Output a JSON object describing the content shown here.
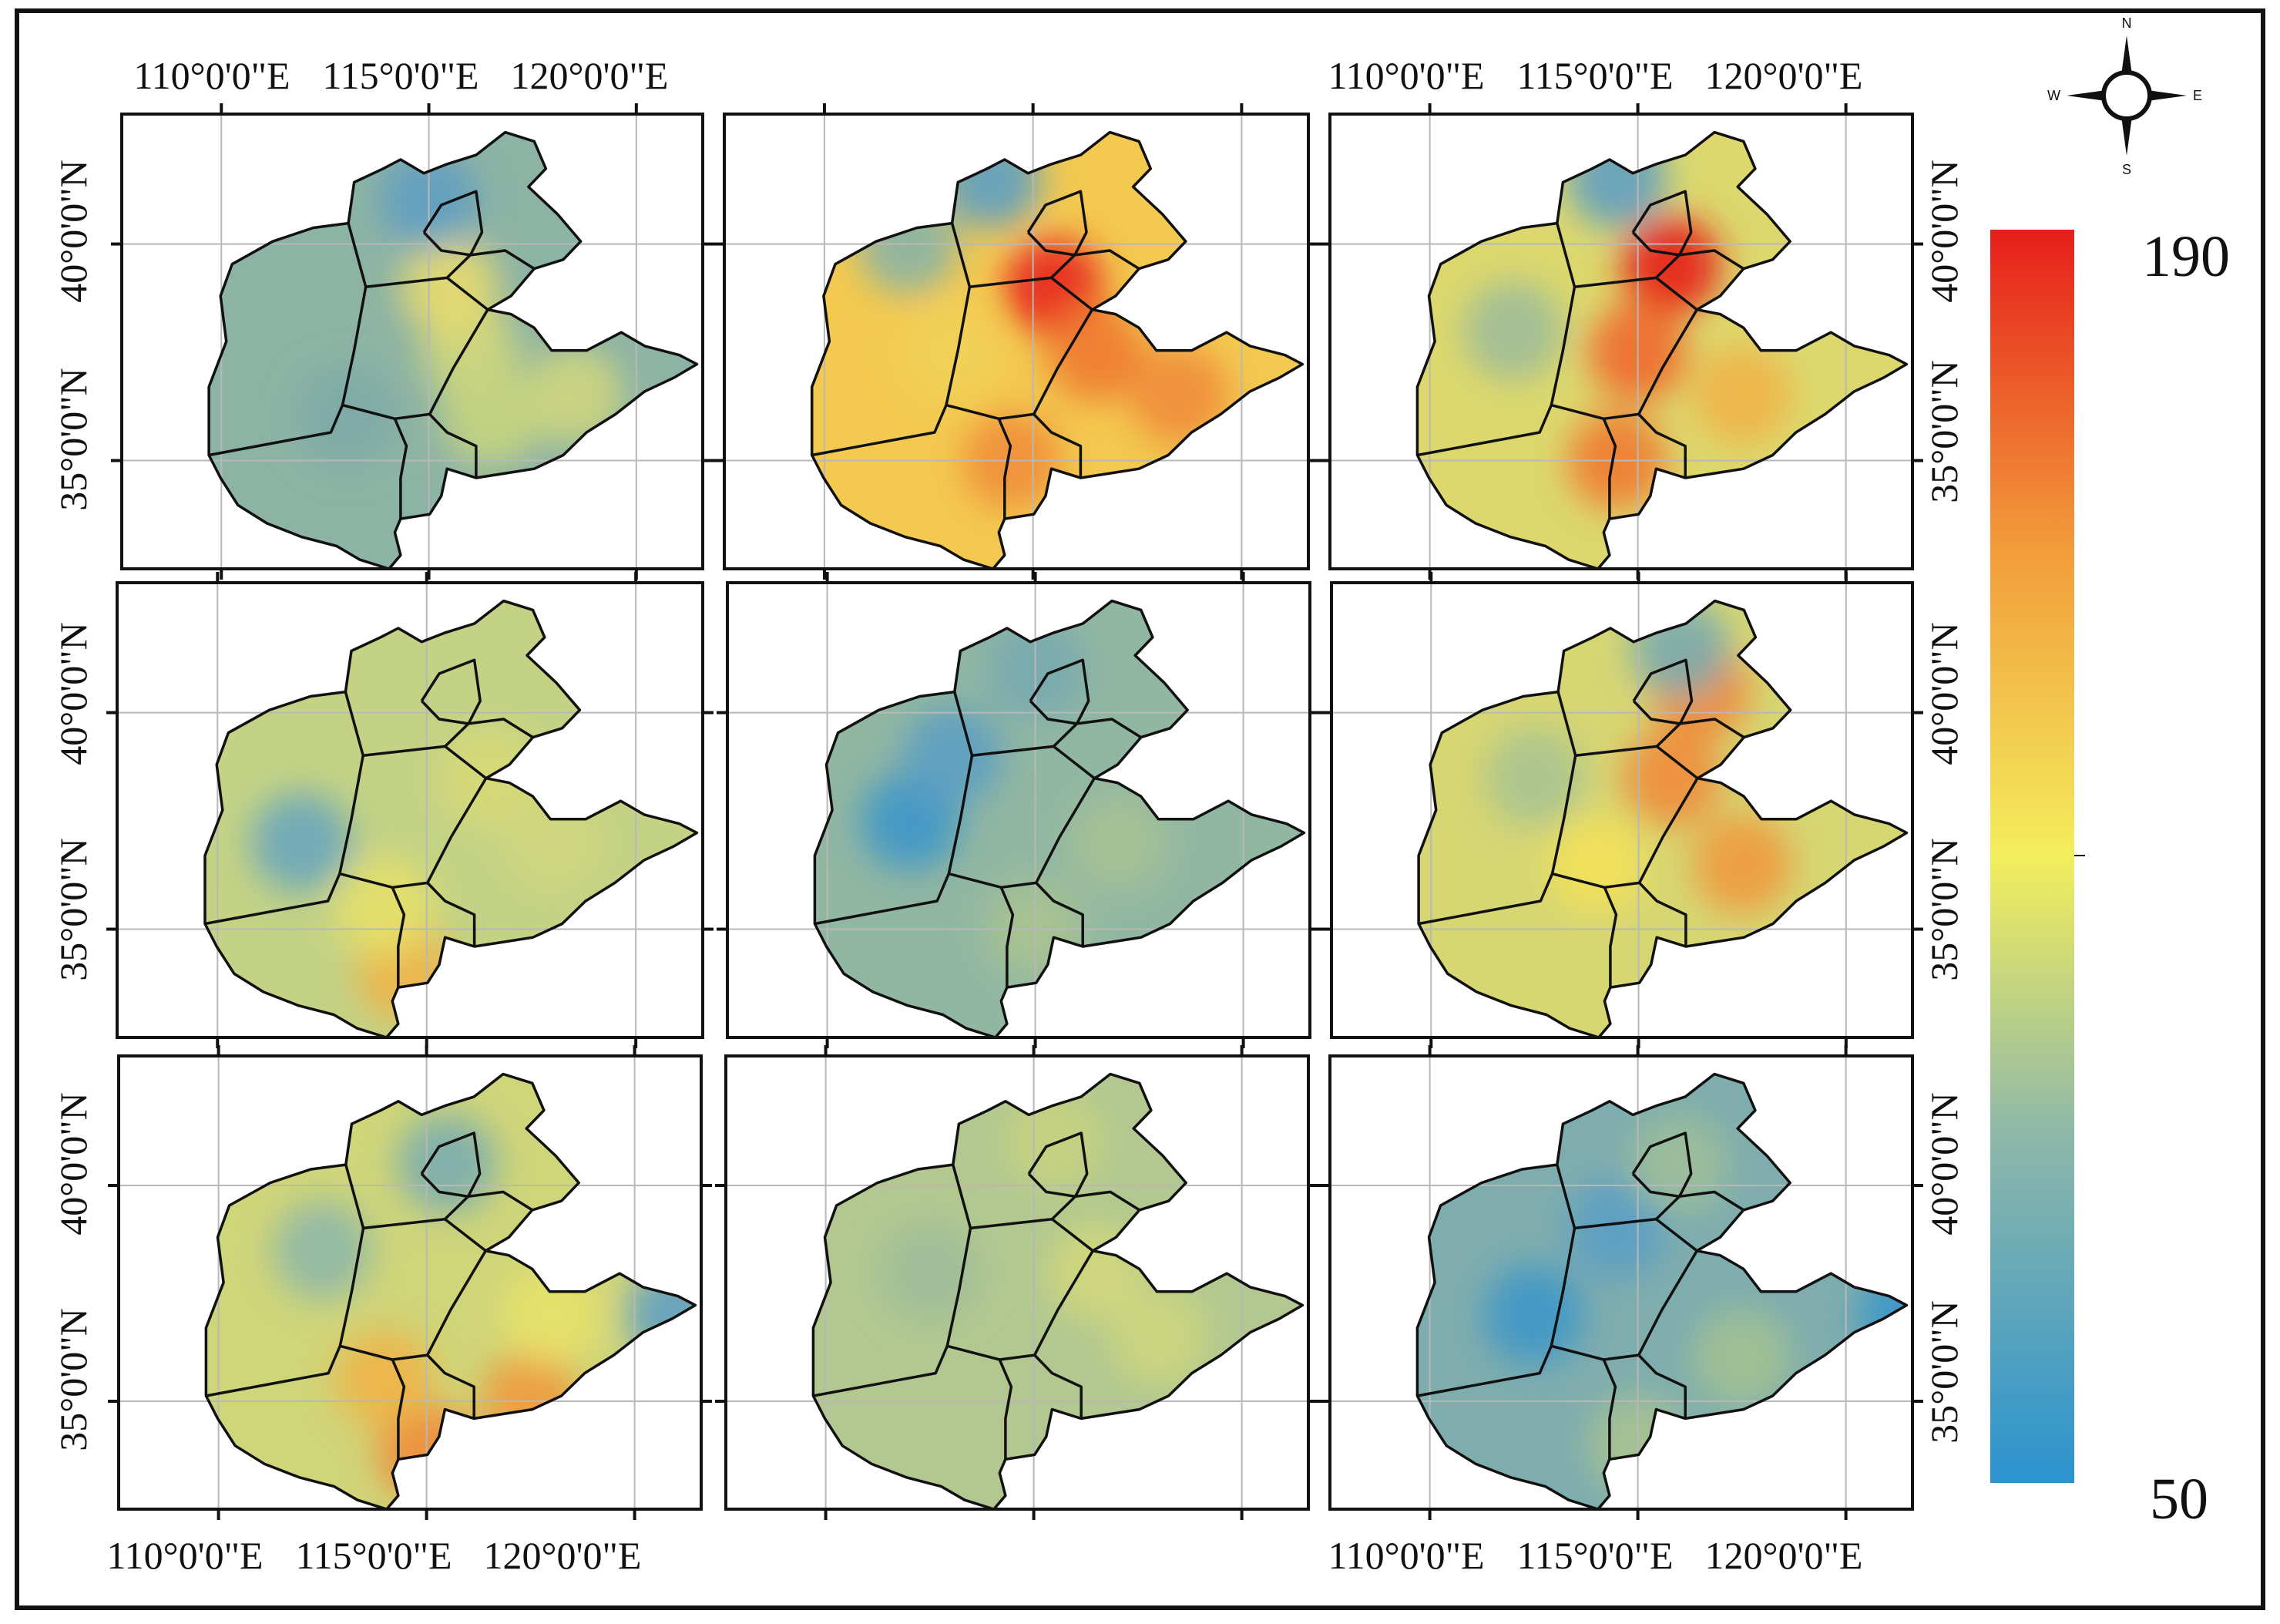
{
  "figure": {
    "panel_count": 9,
    "grid_columns": 3,
    "grid_rows": 3
  },
  "axes": {
    "lon_top_left": [
      "110°0'0\"E",
      "115°0'0\"E",
      "120°0'0\"E"
    ],
    "lon_top_right": [
      "110°0'0\"E",
      "115°0'0\"E",
      "120°0'0\"E"
    ],
    "lon_bottom_left": [
      "110°0'0\"E",
      "115°0'0\"E",
      "120°0'0\"E"
    ],
    "lon_bottom_right": [
      "110°0'0\"E",
      "115°0'0\"E",
      "120°0'0\"E"
    ],
    "lat_left": [
      "40°0'0\"N",
      "35°0'0\"N"
    ],
    "lat_right": [
      "40°0'0\"N",
      "35°0'0\"N"
    ]
  },
  "legend": {
    "max_label": "190",
    "min_label": "50",
    "max_value": 190,
    "min_value": 50,
    "colors": [
      "#2b93cf",
      "#8fb8a8",
      "#f3ee5c",
      "#f29a3a",
      "#e61f1a"
    ]
  },
  "compass": {
    "n": "N",
    "s": "S",
    "e": "E",
    "w": "W"
  },
  "panels": [
    {
      "id": "a",
      "base_color": "#8db3a4",
      "hotspots": [
        {
          "lon": 113.0,
          "lat": 36.0,
          "level": "#7eaaa6"
        },
        {
          "lon": 116.0,
          "lat": 37.5,
          "level": "#cfd77c"
        },
        {
          "lon": 115.5,
          "lat": 39.0,
          "level": "#e8da6f"
        },
        {
          "lon": 116.5,
          "lat": 36.0,
          "level": "#c8d57e"
        },
        {
          "lon": 118.5,
          "lat": 36.5,
          "level": "#cfd67e"
        },
        {
          "lon": 115.0,
          "lat": 41.0,
          "level": "#5f9ec2"
        }
      ]
    },
    {
      "id": "b",
      "base_color": "#f3c94f",
      "hotspots": [
        {
          "lon": 115.5,
          "lat": 39.0,
          "level": "#e8261c"
        },
        {
          "lon": 116.5,
          "lat": 37.5,
          "level": "#ef7a31"
        },
        {
          "lon": 118.5,
          "lat": 36.5,
          "level": "#f08c3b"
        },
        {
          "lon": 114.5,
          "lat": 35.0,
          "level": "#ef8e3b"
        },
        {
          "lon": 113.0,
          "lat": 37.5,
          "level": "#f2d25a"
        },
        {
          "lon": 114.0,
          "lat": 41.5,
          "level": "#5c9fc4"
        },
        {
          "lon": 112.0,
          "lat": 40.0,
          "level": "#88b4a6"
        }
      ]
    },
    {
      "id": "c",
      "base_color": "#dcd86d",
      "hotspots": [
        {
          "lon": 115.8,
          "lat": 39.5,
          "level": "#e61f1a"
        },
        {
          "lon": 115.0,
          "lat": 37.5,
          "level": "#ef6a2c"
        },
        {
          "lon": 114.5,
          "lat": 35.0,
          "level": "#ef7a31"
        },
        {
          "lon": 117.5,
          "lat": 36.5,
          "level": "#f0b448"
        },
        {
          "lon": 114.5,
          "lat": 41.5,
          "level": "#5f9ec2"
        },
        {
          "lon": 112.0,
          "lat": 38.0,
          "level": "#9dbd9a"
        }
      ]
    },
    {
      "id": "d",
      "base_color": "#c3d285",
      "hotspots": [
        {
          "lon": 114.5,
          "lat": 34.0,
          "level": "#f0b448"
        },
        {
          "lon": 112.0,
          "lat": 37.0,
          "level": "#6aa6bd"
        },
        {
          "lon": 116.5,
          "lat": 38.5,
          "level": "#d8d977"
        },
        {
          "lon": 118.0,
          "lat": 37.0,
          "level": "#cfd67e"
        },
        {
          "lon": 114.0,
          "lat": 35.5,
          "level": "#e6e06a"
        }
      ]
    },
    {
      "id": "e",
      "base_color": "#91b6a2",
      "hotspots": [
        {
          "lon": 112.0,
          "lat": 37.5,
          "level": "#3f97c9"
        },
        {
          "lon": 113.0,
          "lat": 39.0,
          "level": "#5d9fc3"
        },
        {
          "lon": 115.0,
          "lat": 35.0,
          "level": "#a8c391"
        },
        {
          "lon": 117.0,
          "lat": 37.0,
          "level": "#a6c294"
        },
        {
          "lon": 115.0,
          "lat": 41.0,
          "level": "#78aab0"
        }
      ]
    },
    {
      "id": "f",
      "base_color": "#d6d673",
      "hotspots": [
        {
          "lon": 115.8,
          "lat": 38.5,
          "level": "#f08c3b"
        },
        {
          "lon": 117.5,
          "lat": 36.5,
          "level": "#f09a3f"
        },
        {
          "lon": 116.5,
          "lat": 40.5,
          "level": "#ef8a38"
        },
        {
          "lon": 114.0,
          "lat": 36.5,
          "level": "#f3e15a"
        },
        {
          "lon": 112.5,
          "lat": 38.5,
          "level": "#a8c391"
        },
        {
          "lon": 116.0,
          "lat": 41.5,
          "level": "#7aacb0"
        }
      ]
    },
    {
      "id": "g",
      "base_color": "#cfd579",
      "hotspots": [
        {
          "lon": 115.0,
          "lat": 33.8,
          "level": "#f08c3b"
        },
        {
          "lon": 117.5,
          "lat": 35.0,
          "level": "#f09a3f"
        },
        {
          "lon": 114.0,
          "lat": 35.5,
          "level": "#f0b448"
        },
        {
          "lon": 115.5,
          "lat": 40.5,
          "level": "#7aacb0"
        },
        {
          "lon": 112.5,
          "lat": 38.5,
          "level": "#8fb8a8"
        },
        {
          "lon": 118.0,
          "lat": 37.0,
          "level": "#e8e26a"
        },
        {
          "lon": 121.0,
          "lat": 37.0,
          "level": "#5fa0c2"
        }
      ]
    },
    {
      "id": "h",
      "base_color": "#b2c890",
      "hotspots": [
        {
          "lon": 116.5,
          "lat": 38.0,
          "level": "#d2d77b"
        },
        {
          "lon": 118.0,
          "lat": 36.5,
          "level": "#cdd67e"
        },
        {
          "lon": 112.5,
          "lat": 38.0,
          "level": "#9dbd9a"
        },
        {
          "lon": 115.5,
          "lat": 41.0,
          "level": "#c8d381"
        }
      ]
    },
    {
      "id": "i",
      "base_color": "#7fadae",
      "hotspots": [
        {
          "lon": 112.5,
          "lat": 37.0,
          "level": "#3d97c8"
        },
        {
          "lon": 114.5,
          "lat": 39.0,
          "level": "#5b9fc4"
        },
        {
          "lon": 121.5,
          "lat": 37.0,
          "level": "#3b97ca"
        },
        {
          "lon": 115.0,
          "lat": 34.0,
          "level": "#a8c391"
        },
        {
          "lon": 117.5,
          "lat": 36.0,
          "level": "#a3c192"
        },
        {
          "lon": 116.0,
          "lat": 40.5,
          "level": "#9fbf99"
        }
      ]
    }
  ]
}
